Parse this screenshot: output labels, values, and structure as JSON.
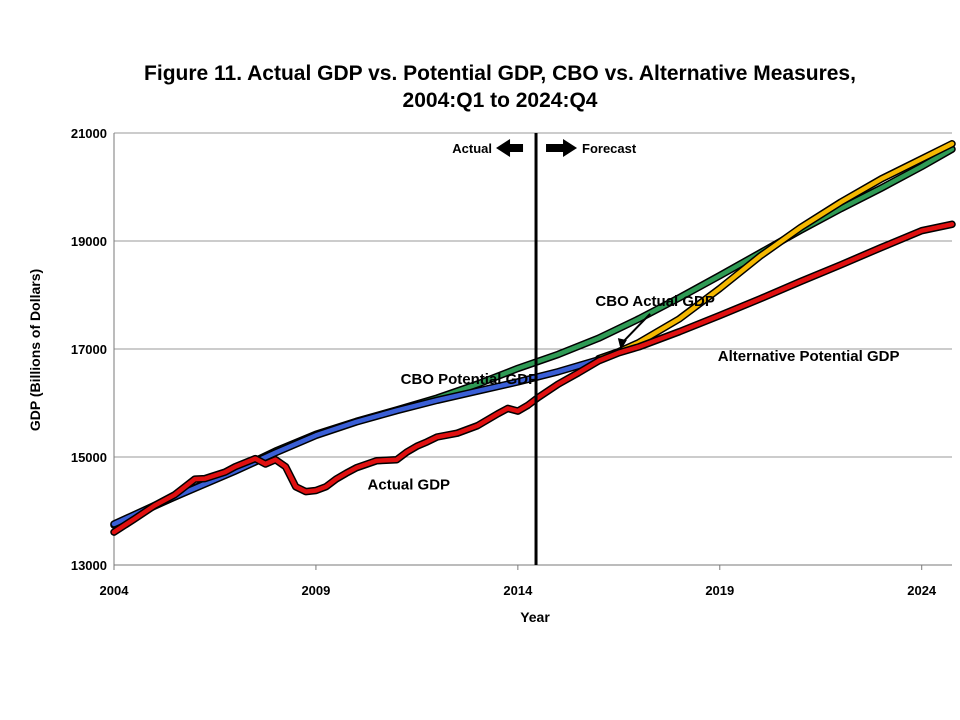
{
  "chart_data": {
    "type": "line",
    "title": "Figure 11. Actual GDP vs. Potential GDP, CBO vs. Alternative Measures,",
    "subtitle": "2004:Q1 to 2024:Q4",
    "xlabel": "Year",
    "ylabel": "GDP (Billions of Dollars)",
    "xlim": [
      2004,
      2024.75
    ],
    "ylim": [
      13000,
      21000
    ],
    "x_ticks": [
      2004,
      2009,
      2014,
      2019,
      2024
    ],
    "y_ticks": [
      13000,
      15000,
      17000,
      19000,
      21000
    ],
    "grid": "horizontal",
    "divider_x": 2014.45,
    "divider_labels": {
      "left": "Actual",
      "right": "Forecast"
    },
    "series": [
      {
        "name": "CBO Potential GDP",
        "color": "#2f9b55",
        "x": [
          2004,
          2005,
          2006,
          2007,
          2008,
          2009,
          2010,
          2011,
          2012,
          2013,
          2014,
          2015,
          2016,
          2017,
          2018,
          2019,
          2020,
          2021,
          2022,
          2023,
          2024,
          2024.75
        ],
        "y": [
          13740,
          14090,
          14430,
          14750,
          15110,
          15420,
          15660,
          15870,
          16090,
          16350,
          16640,
          16900,
          17200,
          17560,
          17950,
          18360,
          18780,
          19200,
          19600,
          19980,
          20380,
          20700
        ]
      },
      {
        "name": "CBO Actual GDP",
        "color": "#f5b800",
        "x": [
          2016.0,
          2016.5,
          2017,
          2018,
          2019,
          2020,
          2021,
          2022,
          2023,
          2024,
          2024.75
        ],
        "y": [
          16820,
          16950,
          17120,
          17560,
          18120,
          18720,
          19250,
          19720,
          20150,
          20520,
          20800
        ]
      },
      {
        "name": "Alternative Potential GDP",
        "color": "#3a5fd6",
        "x": [
          2004,
          2005,
          2006,
          2007,
          2008,
          2009,
          2010,
          2011,
          2012,
          2013,
          2014,
          2015,
          2016
        ],
        "y": [
          13760,
          14100,
          14420,
          14740,
          15080,
          15400,
          15650,
          15860,
          16050,
          16220,
          16390,
          16580,
          16800
        ]
      },
      {
        "name": "Actual GDP",
        "color": "#e01010",
        "x": [
          2004,
          2004.5,
          2005,
          2005.5,
          2006,
          2006.25,
          2006.75,
          2007,
          2007.5,
          2007.75,
          2008,
          2008.25,
          2008.5,
          2008.75,
          2009,
          2009.25,
          2009.5,
          2009.75,
          2010,
          2010.5,
          2011,
          2011.25,
          2011.5,
          2011.75,
          2012,
          2012.5,
          2013,
          2013.5,
          2013.75,
          2014,
          2014.25,
          2014.5,
          2015,
          2015.5,
          2016,
          2016.5,
          2017,
          2018,
          2019,
          2020,
          2021,
          2022,
          2023,
          2024,
          2024.75
        ],
        "y": [
          13610,
          13850,
          14100,
          14300,
          14590,
          14600,
          14720,
          14820,
          14970,
          14870,
          14950,
          14820,
          14450,
          14360,
          14380,
          14450,
          14590,
          14700,
          14800,
          14930,
          14950,
          15090,
          15200,
          15280,
          15370,
          15440,
          15580,
          15800,
          15900,
          15850,
          15960,
          16100,
          16350,
          16560,
          16780,
          16930,
          17040,
          17320,
          17620,
          17930,
          18250,
          18560,
          18880,
          19190,
          19310
        ]
      }
    ],
    "annotations": [
      {
        "text": "CBO Potential GDP",
        "x": 2012.8,
        "y": 16350
      },
      {
        "text": "CBO Actual GDP",
        "x": 2017.4,
        "y": 17800
      },
      {
        "text": "Alternative Potential GDP",
        "x": 2021.2,
        "y": 16780
      },
      {
        "text": "Actual GDP",
        "x": 2011.3,
        "y": 14400
      }
    ]
  }
}
